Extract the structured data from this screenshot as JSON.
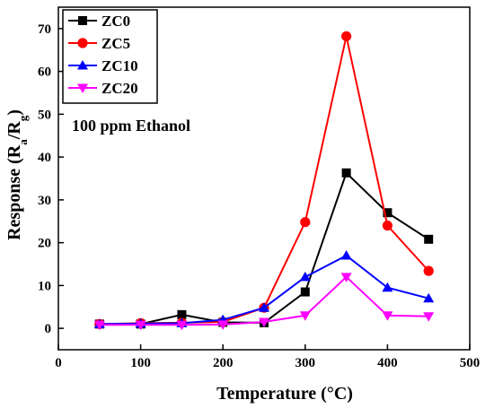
{
  "chart_data": {
    "type": "line",
    "xlabel": "Temperature (°C)",
    "ylabel": "Response (Rₐ/Rᵍ)",
    "ylabel_parts": {
      "main": "Response (R",
      "sub_a": "a",
      "slash": "/R",
      "sub_g": "g",
      "close": ")"
    },
    "annotation": "100 ppm Ethanol",
    "xlim": [
      0,
      500
    ],
    "ylim": [
      -5,
      75
    ],
    "xticks": [
      0,
      100,
      200,
      300,
      400,
      500
    ],
    "yticks": [
      0,
      10,
      20,
      30,
      40,
      50,
      60,
      70
    ],
    "legend_position": "top-left",
    "grid": false,
    "x": [
      50,
      100,
      150,
      200,
      250,
      300,
      350,
      400,
      450
    ],
    "series": [
      {
        "name": "ZC0",
        "color": "#000000",
        "marker": "square",
        "values": [
          1.0,
          1.0,
          3.2,
          1.4,
          1.3,
          8.5,
          36.3,
          27.0,
          20.8
        ]
      },
      {
        "name": "ZC5",
        "color": "#ff0000",
        "marker": "circle",
        "values": [
          1.0,
          1.2,
          1.3,
          1.5,
          4.8,
          24.8,
          68.2,
          24.0,
          13.4
        ]
      },
      {
        "name": "ZC10",
        "color": "#0000ff",
        "marker": "triangle-up",
        "values": [
          1.0,
          1.1,
          1.2,
          2.0,
          4.8,
          12.0,
          17.0,
          9.5,
          7.0
        ]
      },
      {
        "name": "ZC20",
        "color": "#ff00ff",
        "marker": "triangle-down",
        "values": [
          0.8,
          0.8,
          0.8,
          0.9,
          1.5,
          3.0,
          12.0,
          3.0,
          2.8
        ]
      }
    ]
  }
}
